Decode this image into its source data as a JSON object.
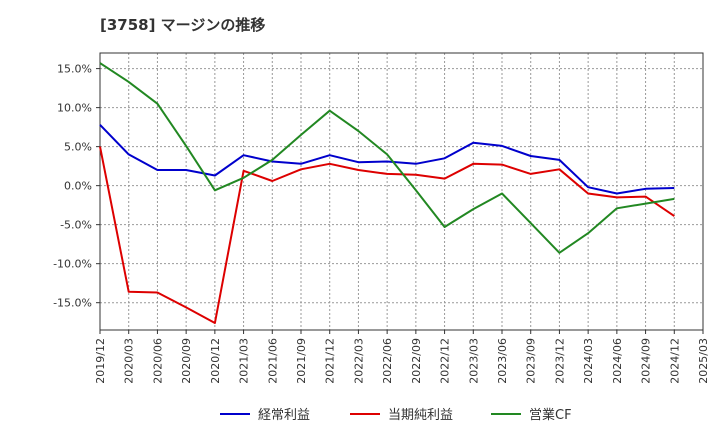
{
  "chart_data": {
    "type": "line",
    "title": "[3758]  マージンの推移",
    "x": [
      "2019/12",
      "2020/03",
      "2020/06",
      "2020/09",
      "2020/12",
      "2021/03",
      "2021/06",
      "2021/09",
      "2021/12",
      "2022/03",
      "2022/06",
      "2022/09",
      "2022/12",
      "2023/03",
      "2023/06",
      "2023/09",
      "2023/12",
      "2024/03",
      "2024/06",
      "2024/09",
      "2024/12",
      "2025/03"
    ],
    "ylim": [
      -18.5,
      17.0
    ],
    "yticks": [
      15,
      10,
      5,
      0,
      -5,
      -10,
      -15
    ],
    "ytick_labels": [
      "15.0%",
      "10.0%",
      "5.0%",
      "0.0%",
      "-5.0%",
      "-10.0%",
      "-15.0%"
    ],
    "grid": true,
    "legend_position": "bottom",
    "series": [
      {
        "name": "経常利益",
        "color": "#0000cc",
        "values": [
          7.8,
          4.0,
          2.0,
          2.0,
          1.3,
          3.9,
          3.1,
          2.8,
          3.9,
          3.0,
          3.1,
          2.8,
          3.5,
          5.5,
          5.1,
          3.8,
          3.3,
          -0.2,
          -1.0,
          -0.4,
          -0.3,
          null
        ]
      },
      {
        "name": "当期純利益",
        "color": "#dd0000",
        "values": [
          5.0,
          -13.6,
          -13.7,
          -15.6,
          -17.6,
          1.9,
          0.6,
          2.1,
          2.8,
          2.0,
          1.5,
          1.4,
          0.9,
          2.8,
          2.7,
          1.5,
          2.1,
          -1.0,
          -1.5,
          -1.4,
          -3.9,
          null
        ]
      },
      {
        "name": "営業CF",
        "color": "#228822",
        "values": [
          15.7,
          13.3,
          10.5,
          5.1,
          -0.6,
          1.0,
          3.3,
          6.5,
          9.6,
          7.0,
          4.0,
          -0.6,
          -5.3,
          -3.0,
          -1.0,
          -4.8,
          -8.6,
          -6.1,
          -2.9,
          -2.3,
          -1.7,
          null
        ]
      }
    ]
  }
}
